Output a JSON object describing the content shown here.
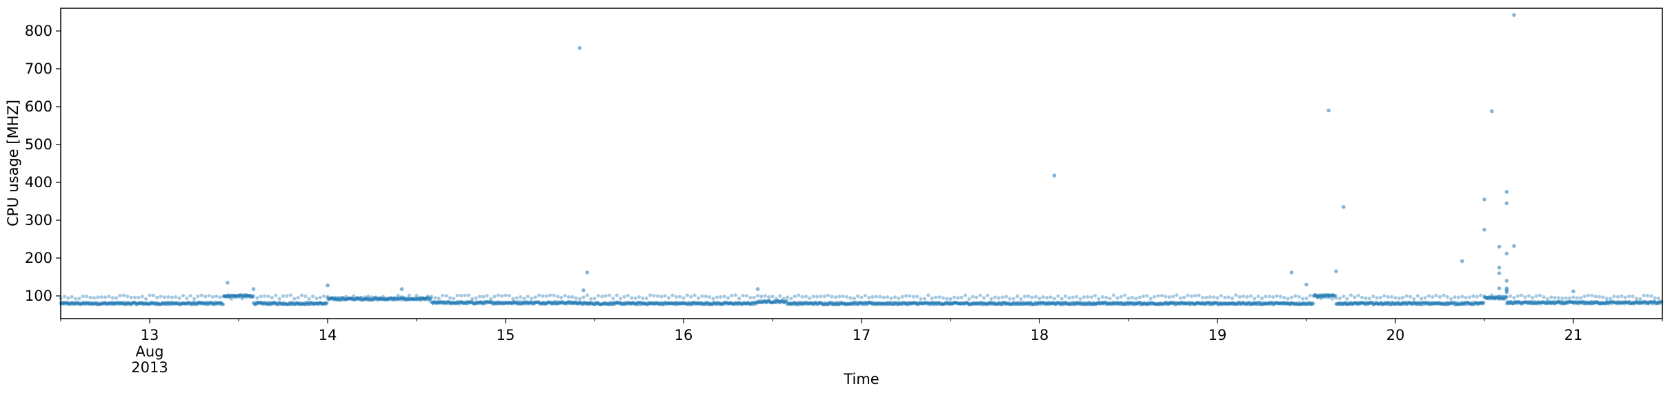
{
  "chart_data": {
    "type": "scatter",
    "title": "",
    "xlabel": "Time",
    "ylabel": "CPU usage [MHZ]",
    "x_scale": "time",
    "xlim": [
      "2013-08-12T12:00",
      "2013-08-21T12:00"
    ],
    "ylim": [
      40,
      860
    ],
    "grid": false,
    "legend": "none",
    "x_ticks": [
      {
        "value": "2013-08-13",
        "label": "13",
        "sublabels": [
          "Aug",
          "2013"
        ]
      },
      {
        "value": "2013-08-14",
        "label": "14"
      },
      {
        "value": "2013-08-15",
        "label": "15"
      },
      {
        "value": "2013-08-16",
        "label": "16"
      },
      {
        "value": "2013-08-17",
        "label": "17"
      },
      {
        "value": "2013-08-18",
        "label": "18"
      },
      {
        "value": "2013-08-19",
        "label": "19"
      },
      {
        "value": "2013-08-20",
        "label": "20"
      },
      {
        "value": "2013-08-21",
        "label": "21"
      }
    ],
    "y_ticks": [
      100,
      200,
      300,
      400,
      500,
      600,
      700,
      800
    ],
    "marker_color": "#1f77b4",
    "marker_alpha": 0.4,
    "series_sampling_interval_minutes": 5,
    "baseline_segments": [
      {
        "start": "2013-08-12T12:00",
        "end": "2013-08-13T10:00",
        "level": 80
      },
      {
        "start": "2013-08-13T10:00",
        "end": "2013-08-13T14:00",
        "level": 100
      },
      {
        "start": "2013-08-13T14:00",
        "end": "2013-08-14T00:00",
        "level": 80
      },
      {
        "start": "2013-08-14T00:00",
        "end": "2013-08-14T14:00",
        "level": 92
      },
      {
        "start": "2013-08-14T14:00",
        "end": "2013-08-15T10:00",
        "level": 82
      },
      {
        "start": "2013-08-15T10:00",
        "end": "2013-08-16T10:00",
        "level": 80
      },
      {
        "start": "2013-08-16T10:00",
        "end": "2013-08-16T14:00",
        "level": 85
      },
      {
        "start": "2013-08-16T14:00",
        "end": "2013-08-19T13:00",
        "level": 80
      },
      {
        "start": "2013-08-19T13:00",
        "end": "2013-08-19T16:00",
        "level": 100
      },
      {
        "start": "2013-08-19T16:00",
        "end": "2013-08-20T12:00",
        "level": 80
      },
      {
        "start": "2013-08-20T12:00",
        "end": "2013-08-20T15:00",
        "level": 95
      },
      {
        "start": "2013-08-20T15:00",
        "end": "2013-08-21T12:00",
        "level": 82
      }
    ],
    "upper_band": {
      "level": 97,
      "note_points_every_minutes": 30
    },
    "spikes": [
      {
        "x": "2013-08-13T10:30",
        "y": 135
      },
      {
        "x": "2013-08-13T14:00",
        "y": 118
      },
      {
        "x": "2013-08-14T00:00",
        "y": 128
      },
      {
        "x": "2013-08-14T10:00",
        "y": 118
      },
      {
        "x": "2013-08-15T10:00",
        "y": 755
      },
      {
        "x": "2013-08-15T11:00",
        "y": 162
      },
      {
        "x": "2013-08-15T10:30",
        "y": 115
      },
      {
        "x": "2013-08-16T10:00",
        "y": 118
      },
      {
        "x": "2013-08-18T02:00",
        "y": 418
      },
      {
        "x": "2013-08-19T10:00",
        "y": 162
      },
      {
        "x": "2013-08-19T12:00",
        "y": 130
      },
      {
        "x": "2013-08-19T15:00",
        "y": 590
      },
      {
        "x": "2013-08-19T16:00",
        "y": 165
      },
      {
        "x": "2013-08-19T17:00",
        "y": 335
      },
      {
        "x": "2013-08-20T09:00",
        "y": 192
      },
      {
        "x": "2013-08-20T12:00",
        "y": 355
      },
      {
        "x": "2013-08-20T12:00",
        "y": 275
      },
      {
        "x": "2013-08-20T13:00",
        "y": 588
      },
      {
        "x": "2013-08-20T14:00",
        "y": 230
      },
      {
        "x": "2013-08-20T14:00",
        "y": 160
      },
      {
        "x": "2013-08-20T14:00",
        "y": 175
      },
      {
        "x": "2013-08-20T15:00",
        "y": 375
      },
      {
        "x": "2013-08-20T15:00",
        "y": 345
      },
      {
        "x": "2013-08-20T15:00",
        "y": 212
      },
      {
        "x": "2013-08-20T15:00",
        "y": 140
      },
      {
        "x": "2013-08-20T15:00",
        "y": 120
      },
      {
        "x": "2013-08-20T15:00",
        "y": 115
      },
      {
        "x": "2013-08-20T15:00",
        "y": 110
      },
      {
        "x": "2013-08-20T16:00",
        "y": 842
      },
      {
        "x": "2013-08-20T16:00",
        "y": 232
      },
      {
        "x": "2013-08-20T14:00",
        "y": 120
      },
      {
        "x": "2013-08-21T00:00",
        "y": 112
      }
    ]
  }
}
